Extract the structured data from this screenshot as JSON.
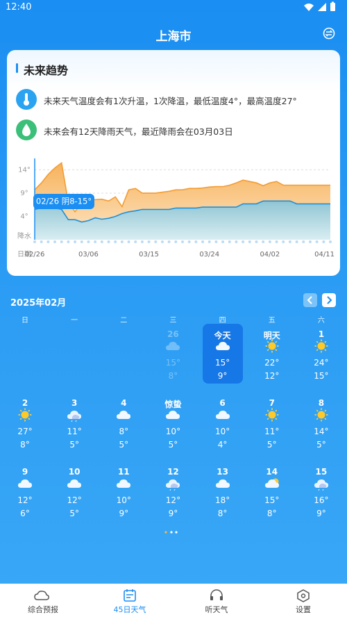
{
  "status_bar": {
    "time": "12:40"
  },
  "header": {
    "title": "上海市"
  },
  "trend": {
    "title": "未来趋势",
    "notes": [
      "未来天气温度会有1次升温，1次降温，最低温度4°，最高温度27°",
      "未来会有12天降雨天气，最近降雨会在03月03日"
    ],
    "row_labels": [
      "降水",
      "日期"
    ],
    "chart_data": {
      "type": "area",
      "categories": [
        "02/26",
        null,
        null,
        null,
        null,
        null,
        null,
        null,
        "03/06",
        null,
        null,
        null,
        null,
        null,
        null,
        null,
        null,
        "03/15",
        null,
        null,
        null,
        null,
        null,
        null,
        null,
        null,
        "03/24",
        null,
        null,
        null,
        null,
        null,
        null,
        null,
        null,
        "04/02",
        null,
        null,
        null,
        null,
        null,
        null,
        null,
        null,
        "04/11"
      ],
      "series": [
        {
          "color": "#f39c32",
          "values": [
            9.7,
            11.2,
            13,
            14.4,
            15.5,
            7,
            5,
            7,
            7.4,
            7.6,
            7.7,
            7.3,
            8.2,
            6.1,
            9.7,
            10,
            9,
            9,
            9,
            9.2,
            9.4,
            9.7,
            9.7,
            10,
            10,
            10.1,
            10.3,
            10.4,
            10.4,
            10.7,
            11.2,
            11.8,
            11.5,
            11.2,
            10.6,
            11.2,
            11.5,
            10.7,
            10.7,
            10.7,
            10.7,
            10.7,
            10.7,
            10.7,
            10.7
          ]
        },
        {
          "color": "#1f8fd8",
          "values": [
            5.5,
            5.8,
            5.8,
            5.8,
            5.5,
            3.3,
            3.3,
            2.8,
            3.1,
            3.7,
            3.4,
            3.6,
            4,
            4.6,
            5,
            5.2,
            5.5,
            5.5,
            5.5,
            5.5,
            5.5,
            5.8,
            5.8,
            5.8,
            5.8,
            6,
            6,
            6,
            6,
            6,
            6,
            6.7,
            6.7,
            6.7,
            7.3,
            7.3,
            7.3,
            7.3,
            7.3,
            6.7,
            6.7,
            6.7,
            6.7,
            6.7,
            6.7
          ]
        }
      ],
      "ylim": [
        -1,
        16
      ],
      "yticks": [
        {
          "value": 14,
          "label": "14°"
        },
        {
          "value": 9,
          "label": "9°"
        },
        {
          "value": 4,
          "label": "4°"
        }
      ],
      "grid": true,
      "annotation": "02/26 阴8-15°"
    }
  },
  "calendar": {
    "month": "2025年02月",
    "weekdays": [
      "日",
      "一",
      "二",
      "三",
      "四",
      "五",
      "六"
    ],
    "days": [
      {
        "label": "26",
        "high": "15°",
        "low": "8°"
      },
      {
        "label": "今天",
        "high": "15°",
        "low": "9°"
      },
      {
        "label": "明天",
        "high": "22°",
        "low": "12°"
      },
      {
        "label": "1",
        "high": "24°",
        "low": "15°"
      },
      {
        "label": "2",
        "high": "27°",
        "low": "8°"
      },
      {
        "label": "3",
        "high": "11°",
        "low": "5°"
      },
      {
        "label": "4",
        "high": "8°",
        "low": "5°"
      },
      {
        "label": "惊蛰",
        "high": "10°",
        "low": "5°"
      },
      {
        "label": "6",
        "high": "10°",
        "low": "4°"
      },
      {
        "label": "7",
        "high": "11°",
        "low": "5°"
      },
      {
        "label": "8",
        "high": "14°",
        "low": "5°"
      },
      {
        "label": "9",
        "high": "12°",
        "low": "6°"
      },
      {
        "label": "10",
        "high": "12°",
        "low": "5°"
      },
      {
        "label": "11",
        "high": "10°",
        "low": "9°"
      },
      {
        "label": "12",
        "high": "12°",
        "low": "9°"
      },
      {
        "label": "13",
        "high": "18°",
        "low": "8°"
      },
      {
        "label": "14",
        "high": "15°",
        "low": "8°"
      },
      {
        "label": "15",
        "high": "16°",
        "low": "9°"
      }
    ]
  },
  "nav": [
    "综合预报",
    "45日天气",
    "听天气",
    "设置"
  ]
}
